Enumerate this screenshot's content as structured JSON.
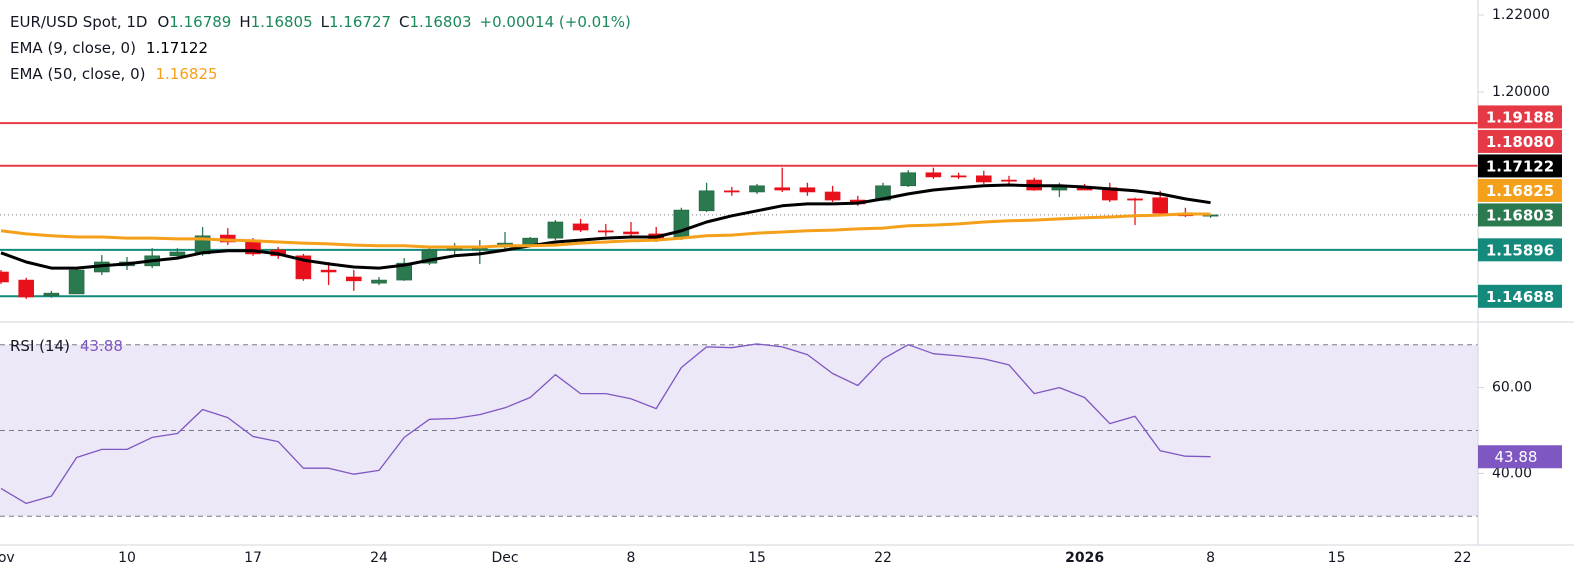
{
  "chart_data": [
    {
      "type": "candlestick",
      "title": "EUR/USD Spot, 1D",
      "ohlc_labels": [
        "O",
        "H",
        "L",
        "C"
      ],
      "change": "+0.00014 (+0.01%)",
      "categories": [
        "Nov",
        null,
        null,
        null,
        null,
        "10",
        null,
        null,
        null,
        null,
        "17",
        null,
        null,
        null,
        null,
        "24",
        null,
        null,
        null,
        null,
        "Dec",
        null,
        null,
        null,
        null,
        "8",
        null,
        null,
        null,
        null,
        "15",
        null,
        null,
        null,
        null,
        "22",
        null,
        null,
        null,
        null,
        null,
        null,
        null,
        "2026",
        null,
        null,
        null,
        null,
        "8",
        null,
        null,
        null,
        null,
        "15",
        null,
        null,
        null,
        null,
        "22"
      ],
      "open": [
        1.1532,
        1.1511,
        1.147,
        1.1475,
        1.1532,
        1.1548,
        1.1548,
        1.1574,
        1.1579,
        1.1628,
        1.1615,
        1.1589,
        1.1574,
        1.1537,
        1.1519,
        1.1503,
        1.1511,
        1.1555,
        1.1589,
        1.1589,
        1.1597,
        1.1602,
        1.162,
        1.1657,
        1.1639,
        1.1636,
        1.1631,
        1.162,
        1.1691,
        1.1743,
        1.174,
        1.1751,
        1.1751,
        1.174,
        1.1719,
        1.1719,
        1.1756,
        1.179,
        1.1782,
        1.1782,
        1.1771,
        1.1771,
        1.1745,
        1.1753,
        1.1751,
        1.1722,
        1.1725,
        1.1683,
        1.16789,
        null,
        null,
        null,
        null,
        null,
        null,
        null,
        null,
        null,
        null
      ],
      "high": [
        1.1537,
        1.1517,
        1.1483,
        1.1542,
        1.1576,
        1.1571,
        1.1594,
        1.1594,
        1.1649,
        1.1646,
        1.162,
        1.1597,
        1.1579,
        1.1558,
        1.1537,
        1.1519,
        1.1568,
        1.1597,
        1.1607,
        1.1615,
        1.1636,
        1.1623,
        1.1667,
        1.167,
        1.1657,
        1.1662,
        1.1649,
        1.1699,
        1.1764,
        1.1753,
        1.1761,
        1.1803,
        1.1764,
        1.1756,
        1.173,
        1.1764,
        1.1797,
        1.1803,
        1.179,
        1.1795,
        1.1782,
        1.1777,
        1.1764,
        1.1761,
        1.1764,
        1.1725,
        1.1743,
        1.1699,
        1.16805,
        null,
        null,
        null,
        null,
        null,
        null,
        null,
        null,
        null,
        null
      ],
      "low": [
        1.1501,
        1.1462,
        1.1465,
        1.1475,
        1.1524,
        1.1537,
        1.1542,
        1.1566,
        1.1574,
        1.1602,
        1.1574,
        1.1566,
        1.1509,
        1.1498,
        1.1483,
        1.1498,
        1.1509,
        1.155,
        1.1574,
        1.1553,
        1.1589,
        1.16,
        1.1615,
        1.1636,
        1.1626,
        1.1626,
        1.161,
        1.1615,
        1.1688,
        1.173,
        1.1735,
        1.174,
        1.173,
        1.1714,
        1.1704,
        1.1717,
        1.1753,
        1.1774,
        1.1774,
        1.1761,
        1.1756,
        1.1743,
        1.1727,
        1.1745,
        1.1714,
        1.1654,
        1.1678,
        1.1675,
        1.16727,
        null,
        null,
        null,
        null,
        null,
        null,
        null,
        null,
        null,
        null
      ],
      "close": [
        1.1506,
        1.1467,
        1.1477,
        1.1537,
        1.1558,
        1.1558,
        1.1574,
        1.1584,
        1.1626,
        1.161,
        1.1579,
        1.1574,
        1.1514,
        1.1532,
        1.1509,
        1.1511,
        1.1555,
        1.1589,
        1.1592,
        1.16,
        1.1607,
        1.162,
        1.1662,
        1.1641,
        1.1637,
        1.1631,
        1.1615,
        1.1693,
        1.1743,
        1.174,
        1.1756,
        1.1745,
        1.174,
        1.1719,
        1.1709,
        1.1756,
        1.179,
        1.1779,
        1.1779,
        1.1766,
        1.1769,
        1.1745,
        1.1756,
        1.1745,
        1.1719,
        1.1721,
        1.1685,
        1.1678,
        1.16803,
        null,
        null,
        null,
        null,
        null,
        null,
        null,
        null,
        null,
        null
      ],
      "up_color": "#2b7a4f",
      "down_color": "#e8101a",
      "last_color": "#2b7a4f",
      "series": [
        {
          "name": "EMA (9, close, 0)",
          "color": "#000000",
          "values": [
            1.1582,
            1.1558,
            1.1542,
            1.1542,
            1.1548,
            1.1553,
            1.1561,
            1.1568,
            1.1582,
            1.1587,
            1.1587,
            1.1579,
            1.1563,
            1.1553,
            1.1545,
            1.1542,
            1.155,
            1.1563,
            1.1574,
            1.1579,
            1.1589,
            1.16,
            1.161,
            1.1615,
            1.162,
            1.1623,
            1.1623,
            1.1639,
            1.1662,
            1.1678,
            1.1691,
            1.1704,
            1.1709,
            1.1709,
            1.1711,
            1.1722,
            1.1735,
            1.1745,
            1.1751,
            1.1756,
            1.1758,
            1.1756,
            1.1756,
            1.1753,
            1.1748,
            1.1743,
            1.1735,
            1.1722,
            1.17122,
            null,
            null,
            null,
            null,
            null,
            null,
            null,
            null,
            null,
            null
          ]
        },
        {
          "name": "EMA (50, close, 0)",
          "color": "#f5a01a",
          "values": [
            1.1639,
            1.1631,
            1.1626,
            1.1623,
            1.1623,
            1.162,
            1.162,
            1.1618,
            1.1618,
            1.1615,
            1.1613,
            1.161,
            1.1607,
            1.1605,
            1.1602,
            1.16,
            1.16,
            1.1597,
            1.1597,
            1.1597,
            1.16,
            1.16,
            1.1602,
            1.1607,
            1.161,
            1.1613,
            1.1615,
            1.162,
            1.1626,
            1.1628,
            1.1633,
            1.1636,
            1.1639,
            1.1641,
            1.1644,
            1.1646,
            1.1652,
            1.1654,
            1.1657,
            1.1662,
            1.1665,
            1.1667,
            1.167,
            1.1673,
            1.1675,
            1.1678,
            1.168,
            1.1683,
            1.16825,
            null,
            null,
            null,
            null,
            null,
            null,
            null,
            null,
            null,
            null
          ]
        }
      ],
      "levels": [
        {
          "value": 1.19188,
          "label": "1.19188",
          "color": "#e53946"
        },
        {
          "value": 1.1808,
          "label": "1.18080",
          "color": "#e53946"
        },
        {
          "value": 1.15896,
          "label": "1.15896",
          "color": "#138a7b"
        },
        {
          "value": 1.14688,
          "label": "1.14688",
          "color": "#138a7b"
        }
      ],
      "ylim": [
        1.1402,
        1.2239
      ],
      "yticks": [
        {
          "value": 1.22,
          "label": "1.22000"
        },
        {
          "value": 1.2,
          "label": "1.20000"
        }
      ]
    },
    {
      "type": "line",
      "series": [
        {
          "name": "RSI (14)",
          "color": "#7e57c2",
          "values": [
            36.5,
            33.0,
            34.7,
            43.7,
            45.6,
            45.6,
            48.4,
            49.3,
            54.9,
            53.0,
            48.6,
            47.4,
            41.2,
            41.2,
            39.8,
            40.7,
            48.4,
            52.6,
            52.8,
            53.7,
            55.3,
            57.7,
            63.0,
            58.6,
            58.6,
            57.4,
            55.1,
            64.7,
            69.5,
            69.3,
            70.2,
            69.5,
            67.7,
            63.3,
            60.5,
            66.7,
            70.0,
            67.9,
            67.4,
            66.7,
            65.3,
            58.6,
            60.0,
            57.7,
            51.6,
            53.3,
            45.3,
            44.0,
            43.88,
            null,
            null,
            null,
            null,
            null,
            null,
            null,
            null,
            null,
            null
          ]
        }
      ],
      "levels": [
        70,
        50,
        30
      ],
      "band_color": "#ede8f7",
      "ylim": [
        23.3,
        75.3
      ],
      "yticks": [
        {
          "value": 60,
          "label": "60.00"
        },
        {
          "value": 40,
          "label": "40.00"
        }
      ]
    }
  ]
}
